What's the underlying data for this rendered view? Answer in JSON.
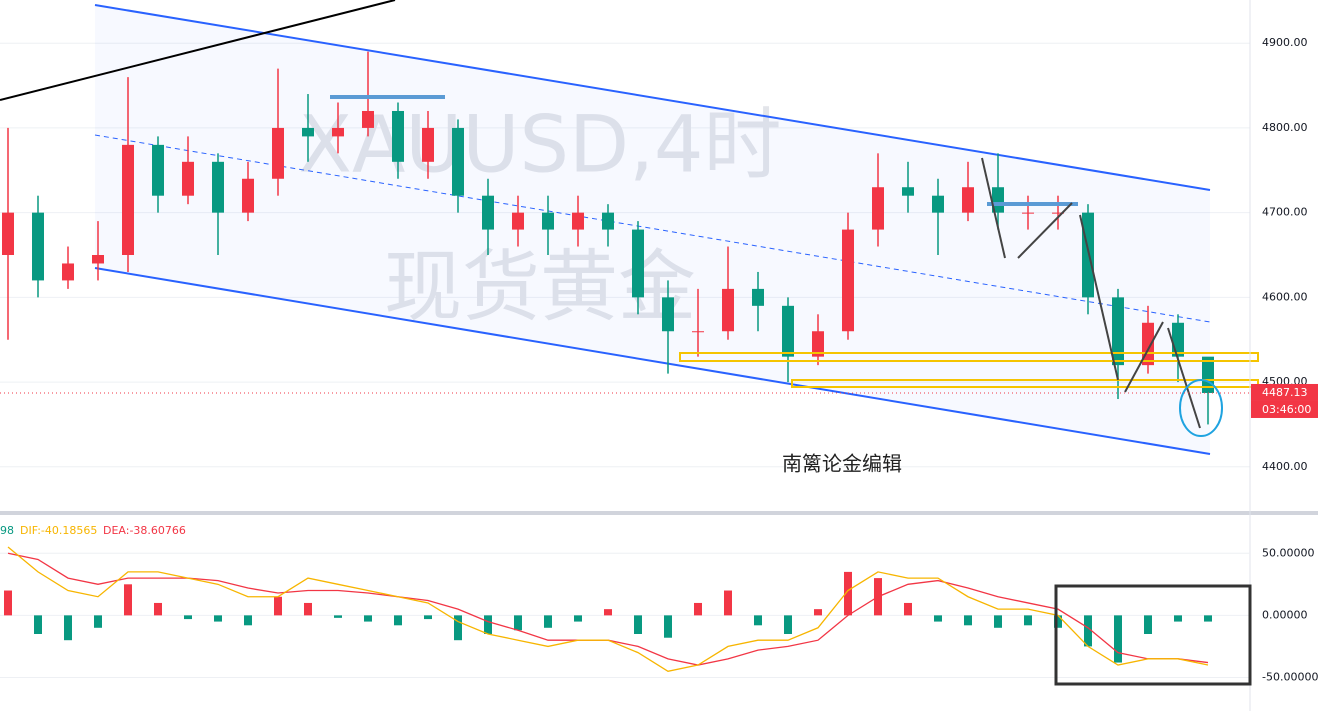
{
  "chart_data": [
    {
      "type": "candlestick",
      "title": "XAUUSD,4时",
      "subtitle": "现货黄金",
      "annotation": "南篱论金编辑",
      "candles": {
        "open": [
          4650,
          4700,
          4620,
          4640,
          4650,
          4780,
          4720,
          4760,
          4700,
          4740,
          4800,
          4790,
          4800,
          4820,
          4760,
          4800,
          4720,
          4680,
          4700,
          4680,
          4700,
          4680,
          4600,
          4560,
          4560,
          4610,
          4590,
          4530,
          4560,
          4680,
          4730,
          4720,
          4700,
          4730,
          4700,
          4700,
          4700,
          4600,
          4520,
          4570,
          4530
        ],
        "high": [
          4800,
          4720,
          4660,
          4690,
          4860,
          4790,
          4790,
          4770,
          4760,
          4870,
          4840,
          4830,
          4890,
          4830,
          4820,
          4810,
          4740,
          4720,
          4720,
          4720,
          4710,
          4690,
          4620,
          4610,
          4660,
          4630,
          4600,
          4580,
          4700,
          4770,
          4760,
          4740,
          4760,
          4770,
          4720,
          4720,
          4710,
          4610,
          4590,
          4580,
          4510
        ],
        "low": [
          4550,
          4600,
          4610,
          4620,
          4630,
          4700,
          4710,
          4650,
          4690,
          4720,
          4760,
          4770,
          4790,
          4740,
          4740,
          4700,
          4650,
          4660,
          4650,
          4660,
          4660,
          4580,
          4510,
          4530,
          4550,
          4560,
          4500,
          4520,
          4550,
          4660,
          4700,
          4650,
          4690,
          4680,
          4680,
          4680,
          4580,
          4480,
          4510,
          4500,
          4450
        ],
        "close": [
          4700,
          4620,
          4640,
          4650,
          4780,
          4720,
          4760,
          4700,
          4740,
          4800,
          4790,
          4800,
          4820,
          4760,
          4800,
          4720,
          4680,
          4700,
          4680,
          4700,
          4680,
          4600,
          4560,
          4560,
          4610,
          4590,
          4530,
          4560,
          4680,
          4730,
          4720,
          4700,
          4730,
          4700,
          4700,
          4700,
          4600,
          4520,
          4570,
          4530,
          4487.13
        ]
      },
      "up_color": "#f23645",
      "down_color": "#089981",
      "last_price": 4487.13,
      "countdown": "03:46:00",
      "ylim": [
        4349,
        4951
      ],
      "yticks": [
        {
          "value": 4400,
          "label": "4400.00"
        },
        {
          "value": 4500,
          "label": "4500.00"
        },
        {
          "value": 4600,
          "label": "4600.00"
        },
        {
          "value": 4700,
          "label": "4700.00"
        },
        {
          "value": 4800,
          "label": "4800.00"
        },
        {
          "value": 4900,
          "label": "4900.00"
        }
      ],
      "grid": true
    },
    {
      "type": "macd",
      "header_prefix": "98",
      "dif_label": "DIF:-40.18565",
      "dea_label": "DEA:-38.60766",
      "histogram": [
        20,
        -15,
        -20,
        -10,
        25,
        10,
        -3,
        -5,
        -8,
        15,
        10,
        -2,
        -5,
        -8,
        -3,
        -20,
        -15,
        -12,
        -10,
        -5,
        5,
        -15,
        -18,
        10,
        20,
        -8,
        -15,
        5,
        35,
        30,
        10,
        -5,
        -8,
        -10,
        -8,
        -10,
        -25,
        -38,
        -15,
        -5,
        -5
      ],
      "dif": [
        55,
        35,
        20,
        15,
        35,
        35,
        30,
        25,
        15,
        15,
        30,
        25,
        20,
        15,
        10,
        -5,
        -15,
        -20,
        -25,
        -20,
        -20,
        -30,
        -45,
        -40,
        -25,
        -20,
        -20,
        -10,
        20,
        35,
        30,
        30,
        15,
        5,
        5,
        0,
        -25,
        -40,
        -35,
        -35,
        -40
      ],
      "dea": [
        50,
        45,
        30,
        25,
        30,
        30,
        30,
        28,
        22,
        18,
        20,
        20,
        18,
        15,
        12,
        5,
        -5,
        -12,
        -20,
        -20,
        -20,
        -25,
        -35,
        -40,
        -35,
        -28,
        -25,
        -20,
        0,
        15,
        25,
        28,
        22,
        15,
        10,
        5,
        -10,
        -30,
        -35,
        -35,
        -38
      ],
      "dif_color": "#f7b500",
      "dea_color": "#f23645",
      "up_color": "#f23645",
      "down_color": "#089981",
      "ylim": [
        -77,
        80
      ],
      "yticks": [
        {
          "value": -50,
          "label": "-50.00000"
        },
        {
          "value": 0,
          "label": "0.00000"
        },
        {
          "value": 50,
          "label": "50.00000"
        }
      ],
      "grid": true
    }
  ]
}
